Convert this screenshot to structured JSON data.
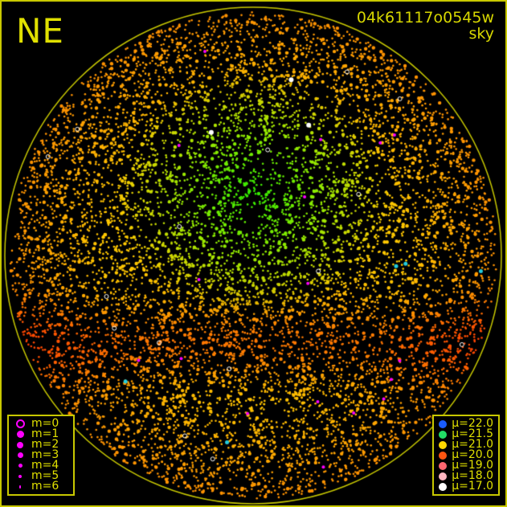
{
  "direction_label": "NE",
  "title": {
    "id": "04k61117o0545w",
    "subtitle": "sky"
  },
  "colors": {
    "border": "#c8c800",
    "horizon": "#c8c800",
    "magnitude_marker": "#ff00ff"
  },
  "magnitude_legend": [
    {
      "label": "m=0",
      "icon": "hollow-circle"
    },
    {
      "label": "m=1",
      "icon": "filled-circle"
    },
    {
      "label": "m=2",
      "icon": "filled-circle"
    },
    {
      "label": "m=3",
      "icon": "filled-circle"
    },
    {
      "label": "m=4",
      "icon": "filled-circle"
    },
    {
      "label": "m=5",
      "icon": "filled-circle"
    },
    {
      "label": "m=6",
      "icon": "filled-circle"
    }
  ],
  "brightness_legend": [
    {
      "label": "μ=22.0",
      "color": "#1a5cff"
    },
    {
      "label": "μ=21.5",
      "color": "#22dd66"
    },
    {
      "label": "μ=21.0",
      "color": "#ffd700"
    },
    {
      "label": "μ=20.0",
      "color": "#ff5511"
    },
    {
      "label": "μ=19.0",
      "color": "#ff6670"
    },
    {
      "label": "μ=18.0",
      "color": "#ffb6c1"
    },
    {
      "label": "μ=17.0",
      "color": "#ffffff"
    }
  ]
}
